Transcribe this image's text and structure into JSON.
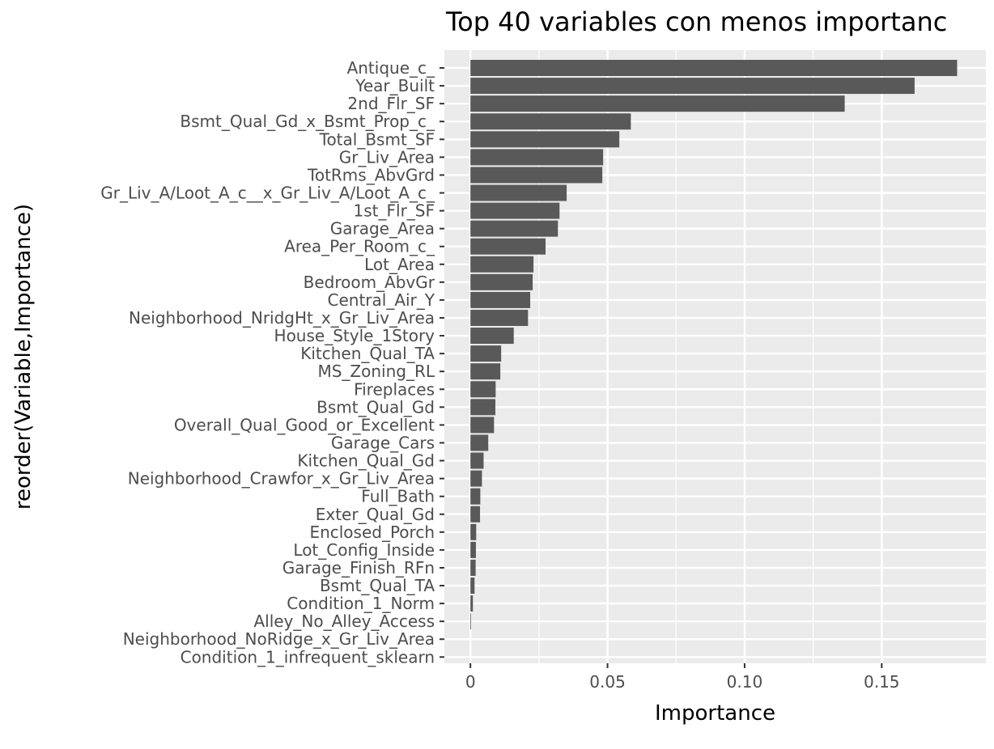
{
  "chart_data": {
    "type": "bar",
    "orientation": "horizontal",
    "title": "Top 40 variables con menos importanc",
    "xlabel": "Importance",
    "ylabel": "reorder(Variable,Importance)",
    "xlim": [
      -0.0095,
      0.188
    ],
    "xticks": [
      0,
      0.05,
      0.1,
      0.15
    ],
    "xtick_labels": [
      "0",
      "0.05",
      "0.10",
      "0.15"
    ],
    "grid": true,
    "colors": {
      "panel": "#EBEBEB",
      "grid": "#FFFFFF",
      "bar": "#595959",
      "tick_text": "#4D4D4D"
    },
    "categories": [
      "Antique_c_",
      "Year_Built",
      "2nd_Flr_SF",
      "Bsmt_Qual_Gd_x_Bsmt_Prop_c_",
      "Total_Bsmt_SF",
      "Gr_Liv_Area",
      "TotRms_AbvGrd",
      "Gr_Liv_A/Loot_A_c__x_Gr_Liv_A/Loot_A_c_",
      "1st_Flr_SF",
      "Garage_Area",
      "Area_Per_Room_c_",
      "Lot_Area",
      "Bedroom_AbvGr",
      "Central_Air_Y",
      "Neighborhood_NridgHt_x_Gr_Liv_Area",
      "House_Style_1Story",
      "Kitchen_Qual_TA",
      "MS_Zoning_RL",
      "Fireplaces",
      "Bsmt_Qual_Gd",
      "Overall_Qual_Good_or_Excellent",
      "Garage_Cars",
      "Kitchen_Qual_Gd",
      "Neighborhood_Crawfor_x_Gr_Liv_Area",
      "Full_Bath",
      "Exter_Qual_Gd",
      "Enclosed_Porch",
      "Lot_Config_Inside",
      "Garage_Finish_RFn",
      "Bsmt_Qual_TA",
      "Condition_1_Norm",
      "Alley_No_Alley_Access",
      "Neighborhood_NoRidge_x_Gr_Liv_Area",
      "Condition_1_infrequent_sklearn"
    ],
    "values": [
      0.1775,
      0.162,
      0.1365,
      0.0585,
      0.0543,
      0.0484,
      0.0481,
      0.0351,
      0.0325,
      0.0319,
      0.0274,
      0.023,
      0.0227,
      0.0218,
      0.021,
      0.0158,
      0.0112,
      0.0109,
      0.0092,
      0.0091,
      0.0086,
      0.0065,
      0.0048,
      0.0042,
      0.0036,
      0.0035,
      0.0021,
      0.002,
      0.0019,
      0.0015,
      0.0009,
      0.0002,
      0.0,
      0.0
    ]
  }
}
